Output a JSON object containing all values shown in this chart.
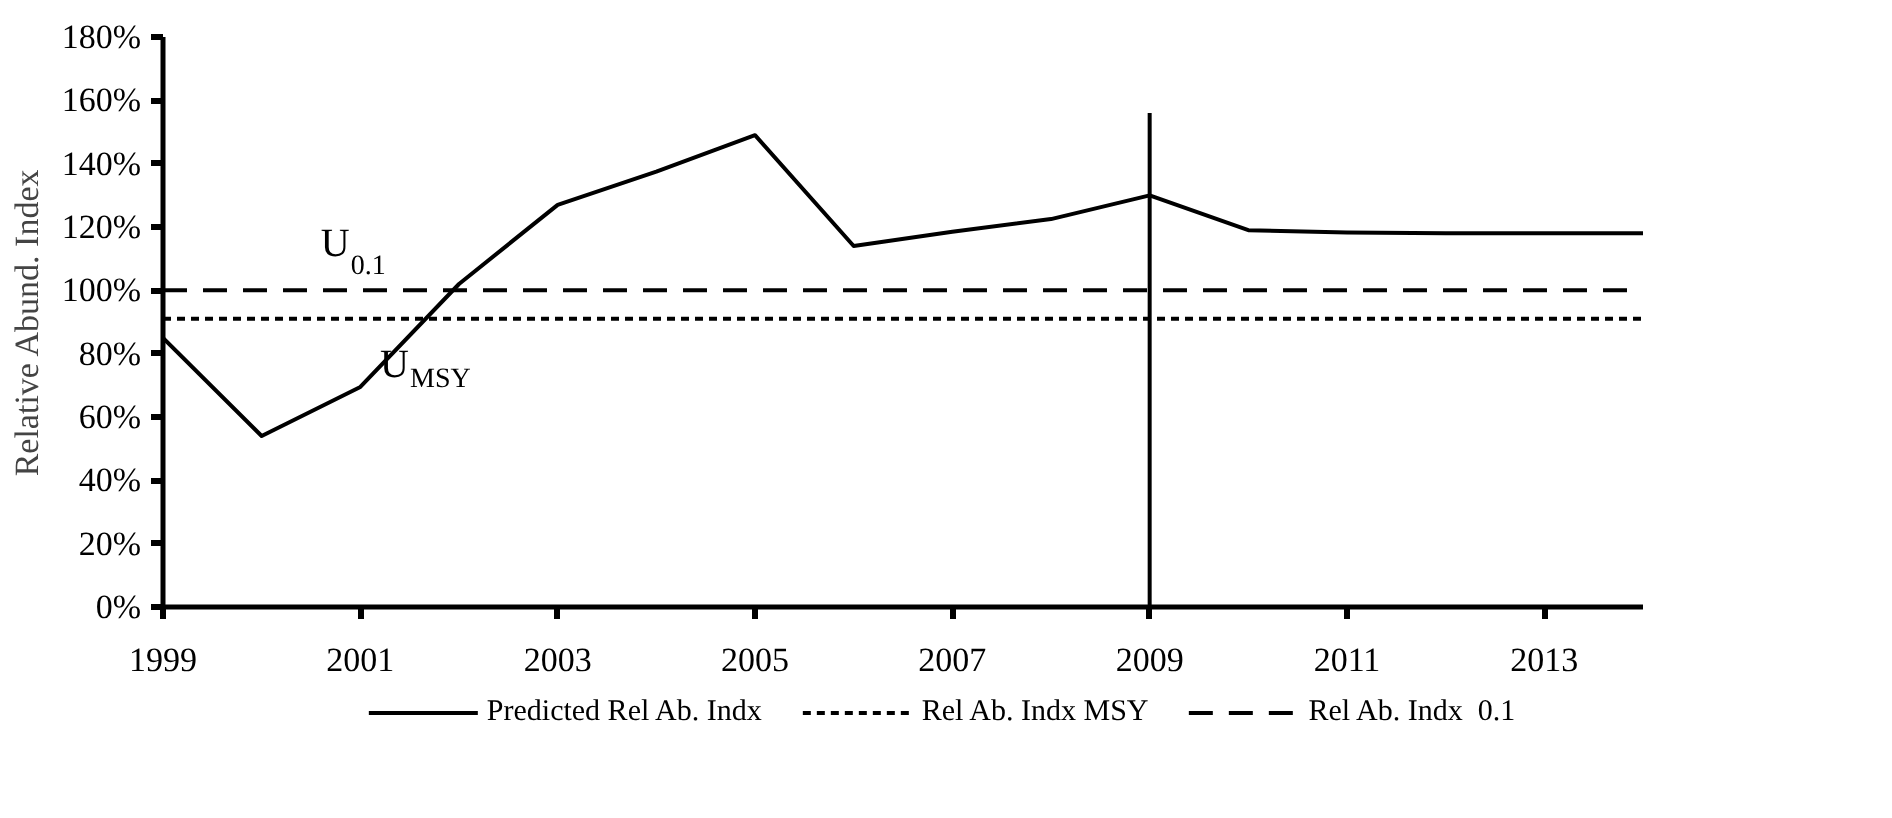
{
  "chart_data": {
    "type": "line",
    "ylabel": "Relative Abund. Index",
    "x": [
      1999,
      2000,
      2001,
      2002,
      2003,
      2004,
      2005,
      2006,
      2007,
      2008,
      2009,
      2010,
      2011,
      2012,
      2013,
      2014
    ],
    "series": [
      {
        "name": "Predicted Rel Ab. Indx",
        "color": "#000000",
        "line_style": "solid",
        "values": [
          85,
          54,
          69.5,
          102,
          127,
          137.5,
          149,
          114,
          118.5,
          122.5,
          130,
          119,
          118.3,
          118,
          118,
          118
        ]
      },
      {
        "name": "Rel Ab. Indx MSY",
        "color": "#000000",
        "line_style": "dotted",
        "values": [
          91,
          91,
          91,
          91,
          91,
          91,
          91,
          91,
          91,
          91,
          91,
          91,
          91,
          91,
          91,
          91
        ]
      },
      {
        "name": "Rel Ab. Indx  0.1",
        "color": "#000000",
        "line_style": "dashed",
        "values": [
          100,
          100,
          100,
          100,
          100,
          100,
          100,
          100,
          100,
          100,
          100,
          100,
          100,
          100,
          100,
          100
        ]
      },
      {
        "color": "#000000",
        "line_style": "solid",
        "x": [
          2009,
          2009
        ],
        "values": [
          0,
          156
        ]
      }
    ],
    "annotations": [
      {
        "text": "U$_{0.1}$",
        "x": 2000.6,
        "y": 100
      },
      {
        "text": "U$_{MSY}$",
        "x": 2001.2,
        "y": 91
      }
    ],
    "xlim": [
      1999,
      2014
    ],
    "xticks": [
      1999,
      2001,
      2003,
      2005,
      2007,
      2009,
      2011,
      2013
    ],
    "ylim": [
      0,
      180
    ],
    "yticks": [
      {
        "value": 0,
        "label": "0%"
      },
      {
        "value": 20,
        "label": "20%"
      },
      {
        "value": 40,
        "label": "40%"
      },
      {
        "value": 60,
        "label": "60%"
      },
      {
        "value": 80,
        "label": "80%"
      },
      {
        "value": 100,
        "label": "100%"
      },
      {
        "value": 120,
        "label": "120%"
      },
      {
        "value": 140,
        "label": "140%"
      },
      {
        "value": 160,
        "label": "160%"
      },
      {
        "value": 180,
        "label": "180%"
      }
    ],
    "grid": false,
    "legend": "bottom",
    "marker": "none"
  }
}
